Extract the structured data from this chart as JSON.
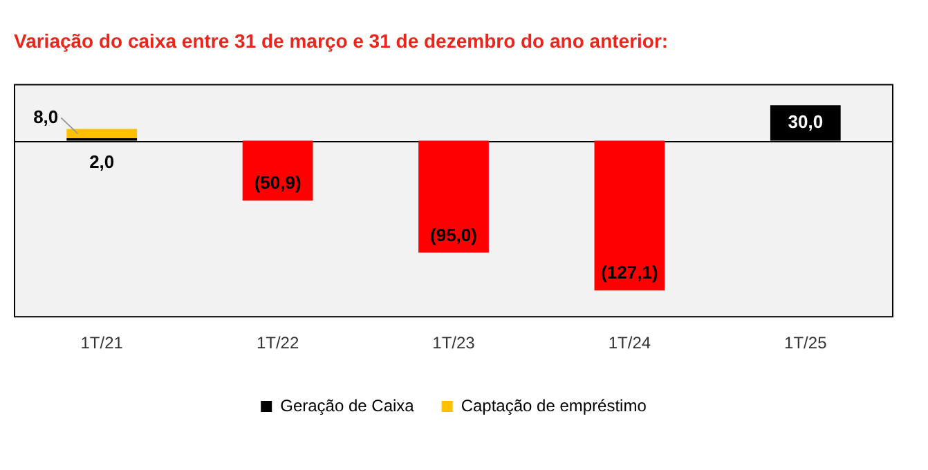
{
  "chart_data": {
    "type": "bar",
    "title": "Variação do caixa entre 31 de março e 31 de dezembro do ano anterior:",
    "categories": [
      "1T/21",
      "1T/22",
      "1T/23",
      "1T/24",
      "1T/25"
    ],
    "stacked": true,
    "ylim": [
      -150,
      48
    ],
    "tick_labels": "x",
    "grid": false,
    "legend": "bottom",
    "series": [
      {
        "name": "Geração de Caixa",
        "color": "#000000",
        "colors": [
          "#000000",
          "#ff0000",
          "#ff0000",
          "#ff0000",
          "#000000"
        ],
        "values": [
          2.0,
          -50.9,
          -95.0,
          -127.1,
          30.0
        ],
        "value_labels": [
          "2,0",
          "(50,9)",
          "(95,0)",
          "(127,1)",
          "30,0"
        ]
      },
      {
        "name": "Captação de empréstimo",
        "color": "#ffc000",
        "values": [
          8.0,
          null,
          null,
          null,
          null
        ],
        "value_labels": [
          "8,0",
          null,
          null,
          null,
          null
        ]
      }
    ]
  }
}
